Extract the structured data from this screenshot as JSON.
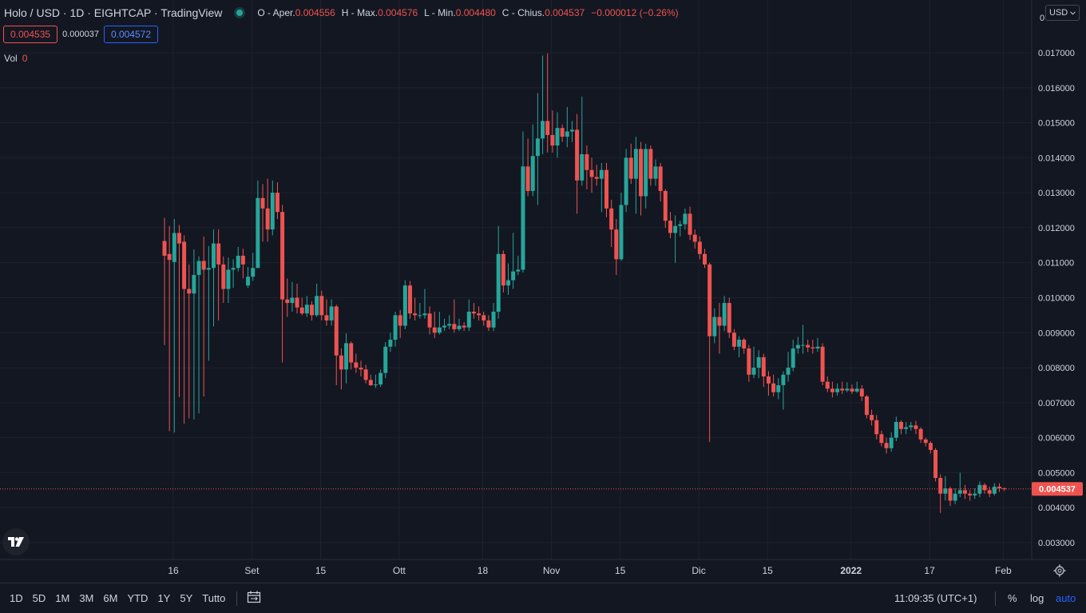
{
  "header": {
    "symbol": "Holo / USD · 1D · EIGHTCAP · TradingView",
    "open_label": "O - Aper.",
    "open_value": "0.004556",
    "high_label": "H - Max.",
    "high_value": "0.004576",
    "low_label": "L - Min.",
    "low_value": "0.004480",
    "close_label": "C - Chius.",
    "close_value": "0.004537",
    "change_value": "−0.000012 (−0.26%)"
  },
  "quote": {
    "bid": "0.004535",
    "spread": "0.000037",
    "ask": "0.004572"
  },
  "volume": {
    "label": "Vol",
    "value": "0"
  },
  "currency": "USD",
  "current_price_label": "0.004537",
  "colors": {
    "background": "#131722",
    "up": "#26a69a",
    "down": "#ef5350",
    "grid": "#1e222d",
    "ask": "#2962ff"
  },
  "bottom_bar": {
    "ranges": [
      "1D",
      "5D",
      "1M",
      "3M",
      "6M",
      "YTD",
      "1Y",
      "5Y",
      "Tutto"
    ],
    "time": "11:09:35 (UTC+1)",
    "percent": "%",
    "log": "log",
    "auto": "auto"
  },
  "icons": [
    "tradingview-logo-icon",
    "calendar-range-icon",
    "gear-icon",
    "chevron-down-icon"
  ],
  "chart_data": {
    "type": "candlestick",
    "timeframe": "1D",
    "y_ticks": [
      "0.003000",
      "0.004000",
      "0.005000",
      "0.006000",
      "0.007000",
      "0.008000",
      "0.009000",
      "0.010000",
      "0.011000",
      "0.012000",
      "0.013000",
      "0.014000",
      "0.015000",
      "0.016000",
      "0.017000"
    ],
    "y_top_label": "0",
    "ylim": [
      0.0027,
      0.0175
    ],
    "x_ticks": [
      {
        "label": "16",
        "index": 0
      },
      {
        "label": "Set",
        "index": 16
      },
      {
        "label": "15",
        "index": 30
      },
      {
        "label": "Ott",
        "index": 46
      },
      {
        "label": "18",
        "index": 63
      },
      {
        "label": "Nov",
        "index": 77
      },
      {
        "label": "15",
        "index": 91
      },
      {
        "label": "Dic",
        "index": 107
      },
      {
        "label": "15",
        "index": 121
      },
      {
        "label": "2022",
        "index": 138
      },
      {
        "label": "17",
        "index": 154
      },
      {
        "label": "Feb",
        "index": 169
      }
    ],
    "candles": [
      [
        0.01162,
        0.0112,
        0.01228,
        0.00865
      ],
      [
        0.01125,
        0.01108,
        0.01205,
        0.00619
      ],
      [
        0.01102,
        0.01185,
        0.01225,
        0.00615
      ],
      [
        0.01185,
        0.01155,
        0.01208,
        0.00716
      ],
      [
        0.0116,
        0.01025,
        0.01178,
        0.0064
      ],
      [
        0.01025,
        0.01012,
        0.01095,
        0.00655
      ],
      [
        0.01012,
        0.01065,
        0.01138,
        0.00652
      ],
      [
        0.01065,
        0.01105,
        0.01118,
        0.00669
      ],
      [
        0.01105,
        0.0108,
        0.01175,
        0.00718
      ],
      [
        0.0108,
        0.01085,
        0.01148,
        0.0082
      ],
      [
        0.01085,
        0.01155,
        0.01195,
        0.00918
      ],
      [
        0.01155,
        0.01095,
        0.01195,
        0.00935
      ],
      [
        0.01095,
        0.01025,
        0.01118,
        0.00985
      ],
      [
        0.01025,
        0.0108,
        0.01115,
        0.00985
      ],
      [
        0.0108,
        0.01085,
        0.0111,
        0.01028
      ],
      [
        0.01085,
        0.0112,
        0.01145,
        0.01075
      ],
      [
        0.0112,
        0.01095,
        0.0114,
        0.01055
      ],
      [
        0.01035,
        0.0106,
        0.01088,
        0.01028
      ],
      [
        0.0106,
        0.01085,
        0.01128,
        0.01048
      ],
      [
        0.01085,
        0.01285,
        0.01335,
        0.01085
      ],
      [
        0.01285,
        0.01255,
        0.01325,
        0.0116
      ],
      [
        0.01255,
        0.01195,
        0.0134,
        0.0116
      ],
      [
        0.01195,
        0.013,
        0.01335,
        0.01178
      ],
      [
        0.013,
        0.01245,
        0.0133,
        0.01225
      ],
      [
        0.01245,
        0.00995,
        0.01265,
        0.00815
      ],
      [
        0.00995,
        0.00985,
        0.01055,
        0.00945
      ],
      [
        0.00985,
        0.01,
        0.01045,
        0.0096
      ],
      [
        0.01,
        0.00972,
        0.0104,
        0.00955
      ],
      [
        0.00972,
        0.00955,
        0.01,
        0.0095
      ],
      [
        0.00955,
        0.0098,
        0.01005,
        0.00945
      ],
      [
        0.0098,
        0.0095,
        0.0099,
        0.00935
      ],
      [
        0.0095,
        0.01005,
        0.0104,
        0.00945
      ],
      [
        0.01005,
        0.0095,
        0.0102,
        0.00935
      ],
      [
        0.0095,
        0.00935,
        0.00995,
        0.0092
      ],
      [
        0.00935,
        0.00975,
        0.00995,
        0.0092
      ],
      [
        0.00975,
        0.00835,
        0.0098,
        0.0075
      ],
      [
        0.00835,
        0.00795,
        0.00855,
        0.00738
      ],
      [
        0.00795,
        0.0087,
        0.00898,
        0.00755
      ],
      [
        0.0087,
        0.00815,
        0.00875,
        0.00795
      ],
      [
        0.00815,
        0.008,
        0.0084,
        0.00785
      ],
      [
        0.008,
        0.00795,
        0.0082,
        0.00775
      ],
      [
        0.00795,
        0.00765,
        0.00808,
        0.00755
      ],
      [
        0.00765,
        0.0075,
        0.0078,
        0.00748
      ],
      [
        0.0075,
        0.00752,
        0.0078,
        0.00742
      ],
      [
        0.00752,
        0.00785,
        0.00795,
        0.00745
      ],
      [
        0.00785,
        0.0086,
        0.00873,
        0.0077
      ],
      [
        0.0086,
        0.0088,
        0.009,
        0.00845
      ],
      [
        0.0088,
        0.0095,
        0.0096,
        0.0086
      ],
      [
        0.0095,
        0.0092,
        0.00965,
        0.00885
      ],
      [
        0.0092,
        0.01035,
        0.0105,
        0.0091
      ],
      [
        0.01035,
        0.00955,
        0.01048,
        0.0094
      ],
      [
        0.00955,
        0.0095,
        0.01,
        0.00935
      ],
      [
        0.0095,
        0.0095,
        0.00985,
        0.0094
      ],
      [
        0.0095,
        0.00955,
        0.01025,
        0.0094
      ],
      [
        0.00955,
        0.00915,
        0.00975,
        0.00895
      ],
      [
        0.00915,
        0.009,
        0.0096,
        0.00885
      ],
      [
        0.009,
        0.00915,
        0.0096,
        0.00895
      ],
      [
        0.00915,
        0.0092,
        0.0094,
        0.00905
      ],
      [
        0.0092,
        0.00925,
        0.0095,
        0.0091
      ],
      [
        0.00925,
        0.0091,
        0.00995,
        0.009
      ],
      [
        0.0091,
        0.0092,
        0.0094,
        0.00905
      ],
      [
        0.0092,
        0.00915,
        0.0093,
        0.00905
      ],
      [
        0.00915,
        0.0096,
        0.00995,
        0.00905
      ],
      [
        0.0096,
        0.00955,
        0.00985,
        0.0094
      ],
      [
        0.00955,
        0.0095,
        0.00975,
        0.00935
      ],
      [
        0.0095,
        0.00935,
        0.0096,
        0.0092
      ],
      [
        0.00935,
        0.00915,
        0.0095,
        0.00905
      ],
      [
        0.00915,
        0.0096,
        0.00985,
        0.00905
      ],
      [
        0.0096,
        0.01125,
        0.01205,
        0.0094
      ],
      [
        0.01125,
        0.01035,
        0.01135,
        0.01015
      ],
      [
        0.01035,
        0.0105,
        0.01098,
        0.01008
      ],
      [
        0.0105,
        0.01075,
        0.01185,
        0.01025
      ],
      [
        0.01075,
        0.0108,
        0.0112,
        0.01065
      ],
      [
        0.0108,
        0.01375,
        0.01475,
        0.01072
      ],
      [
        0.01375,
        0.01305,
        0.01455,
        0.0129
      ],
      [
        0.01305,
        0.01405,
        0.01495,
        0.0129
      ],
      [
        0.01405,
        0.01455,
        0.01585,
        0.01265
      ],
      [
        0.01455,
        0.01505,
        0.01692,
        0.0141
      ],
      [
        0.01505,
        0.01465,
        0.01698,
        0.01415
      ],
      [
        0.01465,
        0.01435,
        0.01535,
        0.01415
      ],
      [
        0.01435,
        0.01485,
        0.0153,
        0.014
      ],
      [
        0.01485,
        0.0146,
        0.01495,
        0.01445
      ],
      [
        0.0146,
        0.01475,
        0.01545,
        0.0143
      ],
      [
        0.01475,
        0.0148,
        0.01505,
        0.01445
      ],
      [
        0.0148,
        0.01335,
        0.01525,
        0.0124
      ],
      [
        0.01335,
        0.0141,
        0.01575,
        0.0132
      ],
      [
        0.0141,
        0.01365,
        0.01435,
        0.0131
      ],
      [
        0.01365,
        0.01345,
        0.014,
        0.013
      ],
      [
        0.01345,
        0.0134,
        0.0138,
        0.0132
      ],
      [
        0.0134,
        0.01365,
        0.01385,
        0.01245
      ],
      [
        0.01365,
        0.01255,
        0.01385,
        0.0123
      ],
      [
        0.01255,
        0.01195,
        0.0128,
        0.01145
      ],
      [
        0.01195,
        0.0111,
        0.01225,
        0.01065
      ],
      [
        0.0111,
        0.01265,
        0.013,
        0.01105
      ],
      [
        0.01265,
        0.014,
        0.01425,
        0.01245
      ],
      [
        0.014,
        0.0134,
        0.0144,
        0.01325
      ],
      [
        0.0134,
        0.01425,
        0.0146,
        0.0124
      ],
      [
        0.01425,
        0.0129,
        0.01445,
        0.01235
      ],
      [
        0.0129,
        0.01425,
        0.0144,
        0.01255
      ],
      [
        0.01425,
        0.0134,
        0.01435,
        0.0132
      ],
      [
        0.0134,
        0.01375,
        0.01395,
        0.0132
      ],
      [
        0.01375,
        0.01305,
        0.01385,
        0.01275
      ],
      [
        0.01305,
        0.0122,
        0.0131,
        0.012
      ],
      [
        0.0122,
        0.01185,
        0.01245,
        0.0117
      ],
      [
        0.01185,
        0.01205,
        0.01235,
        0.011
      ],
      [
        0.01205,
        0.0121,
        0.0122,
        0.01175
      ],
      [
        0.0121,
        0.0124,
        0.01255,
        0.01195
      ],
      [
        0.0124,
        0.0118,
        0.0126,
        0.01165
      ],
      [
        0.0118,
        0.0116,
        0.01195,
        0.0114
      ],
      [
        0.0116,
        0.01125,
        0.01175,
        0.0111
      ],
      [
        0.01125,
        0.01095,
        0.0114,
        0.01085
      ],
      [
        0.01095,
        0.0089,
        0.011,
        0.00588
      ],
      [
        0.0089,
        0.00945,
        0.0097,
        0.0087
      ],
      [
        0.00945,
        0.0092,
        0.00985,
        0.0084
      ],
      [
        0.0092,
        0.00985,
        0.01005,
        0.00905
      ],
      [
        0.00985,
        0.009,
        0.01,
        0.00885
      ],
      [
        0.009,
        0.0086,
        0.0091,
        0.0085
      ],
      [
        0.0086,
        0.0088,
        0.0089,
        0.0083
      ],
      [
        0.0088,
        0.00855,
        0.00885,
        0.0084
      ],
      [
        0.00855,
        0.0078,
        0.00865,
        0.0076
      ],
      [
        0.0078,
        0.008,
        0.0086,
        0.0077
      ],
      [
        0.008,
        0.0083,
        0.0085,
        0.0077
      ],
      [
        0.0083,
        0.00775,
        0.0084,
        0.00745
      ],
      [
        0.00775,
        0.00755,
        0.0079,
        0.0072
      ],
      [
        0.00755,
        0.0073,
        0.0078,
        0.00718
      ],
      [
        0.0073,
        0.0075,
        0.0077,
        0.0071
      ],
      [
        0.0075,
        0.0078,
        0.0079,
        0.0068
      ],
      [
        0.0078,
        0.008,
        0.00845,
        0.0076
      ],
      [
        0.008,
        0.00855,
        0.0088,
        0.0079
      ],
      [
        0.00855,
        0.00865,
        0.00888,
        0.0084
      ],
      [
        0.00865,
        0.00865,
        0.00922,
        0.0084
      ],
      [
        0.00865,
        0.00858,
        0.0088,
        0.00845
      ],
      [
        0.00858,
        0.00855,
        0.0088,
        0.0084
      ],
      [
        0.00855,
        0.0086,
        0.00885,
        0.00845
      ],
      [
        0.0086,
        0.0076,
        0.0087,
        0.0075
      ],
      [
        0.0076,
        0.0074,
        0.00775,
        0.0073
      ],
      [
        0.0074,
        0.0073,
        0.0076,
        0.00715
      ],
      [
        0.0073,
        0.0074,
        0.00755,
        0.0072
      ],
      [
        0.0074,
        0.00735,
        0.0076,
        0.00725
      ],
      [
        0.00735,
        0.0074,
        0.00758,
        0.0073
      ],
      [
        0.0074,
        0.00732,
        0.00752,
        0.00725
      ],
      [
        0.00732,
        0.0074,
        0.0076,
        0.00728
      ],
      [
        0.0074,
        0.00718,
        0.0075,
        0.00705
      ],
      [
        0.00718,
        0.00665,
        0.00722,
        0.00655
      ],
      [
        0.00665,
        0.0065,
        0.0068,
        0.00635
      ],
      [
        0.0065,
        0.0061,
        0.00665,
        0.00595
      ],
      [
        0.0061,
        0.00585,
        0.0062,
        0.00575
      ],
      [
        0.00585,
        0.0057,
        0.006,
        0.00555
      ],
      [
        0.0057,
        0.006,
        0.00615,
        0.0056
      ],
      [
        0.006,
        0.00645,
        0.0066,
        0.0059
      ],
      [
        0.00645,
        0.00625,
        0.0065,
        0.0061
      ],
      [
        0.00625,
        0.0063,
        0.00645,
        0.0061
      ],
      [
        0.0063,
        0.00635,
        0.00645,
        0.0062
      ],
      [
        0.00635,
        0.00625,
        0.00648,
        0.0061
      ],
      [
        0.00625,
        0.00595,
        0.0063,
        0.00585
      ],
      [
        0.00595,
        0.00585,
        0.006,
        0.00575
      ],
      [
        0.00585,
        0.00565,
        0.0059,
        0.00555
      ],
      [
        0.00565,
        0.00485,
        0.0057,
        0.00475
      ],
      [
        0.00485,
        0.0044,
        0.00495,
        0.00385
      ],
      [
        0.0044,
        0.00455,
        0.0049,
        0.0042
      ],
      [
        0.00455,
        0.0042,
        0.0046,
        0.00405
      ],
      [
        0.0042,
        0.0044,
        0.00455,
        0.0041
      ],
      [
        0.0044,
        0.0045,
        0.005,
        0.0043
      ],
      [
        0.0045,
        0.0044,
        0.00465,
        0.00425
      ],
      [
        0.0044,
        0.00435,
        0.0045,
        0.0042
      ],
      [
        0.00435,
        0.0044,
        0.00455,
        0.00425
      ],
      [
        0.0044,
        0.00465,
        0.00475,
        0.0043
      ],
      [
        0.00465,
        0.0045,
        0.0047,
        0.0044
      ],
      [
        0.0045,
        0.0044,
        0.0046,
        0.0043
      ],
      [
        0.0044,
        0.0046,
        0.0047,
        0.00435
      ],
      [
        0.0046,
        0.00455,
        0.0047,
        0.00445
      ],
      [
        0.004556,
        0.004537,
        0.004576,
        0.00448
      ]
    ],
    "candle_format": [
      "open",
      "close",
      "high",
      "low"
    ],
    "last_close": 0.004537
  }
}
